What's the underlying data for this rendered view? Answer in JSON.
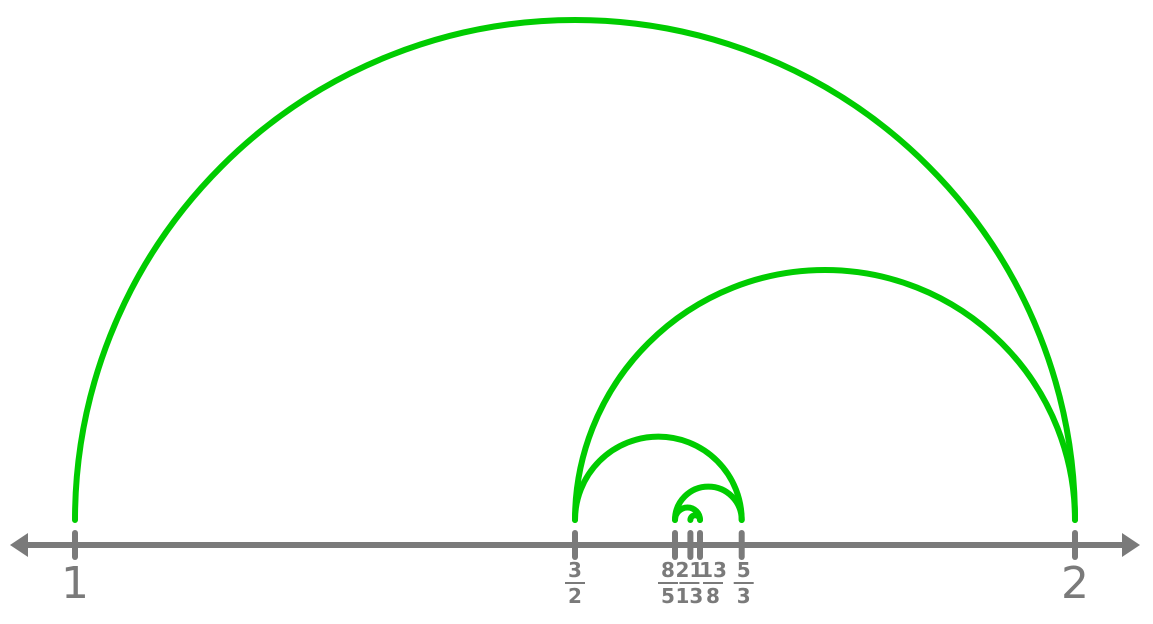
{
  "number_line": {
    "axis": {
      "min": 1,
      "max": 2
    },
    "points": [
      {
        "id": "p1",
        "value": 1,
        "label": "1"
      },
      {
        "id": "p3_2",
        "value": 1.5,
        "numerator": "3",
        "denominator": "2"
      },
      {
        "id": "p8_5",
        "value": 1.6,
        "numerator": "8",
        "denominator": "5"
      },
      {
        "id": "p21_13",
        "value": 1.6154,
        "numerator": "21",
        "denominator": "13"
      },
      {
        "id": "p13_8",
        "value": 1.625,
        "numerator": "13",
        "denominator": "8"
      },
      {
        "id": "p5_3",
        "value": 1.6667,
        "numerator": "5",
        "denominator": "3"
      },
      {
        "id": "p2",
        "value": 2,
        "label": "2"
      }
    ],
    "arcs": [
      {
        "from": 1,
        "to": 2
      },
      {
        "from": 1.5,
        "to": 2
      },
      {
        "from": 1.5,
        "to": 1.6667
      },
      {
        "from": 1.6,
        "to": 1.6667
      },
      {
        "from": 1.6,
        "to": 1.625
      },
      {
        "from": 1.6154,
        "to": 1.625
      }
    ],
    "colors": {
      "arc": "#00cc00",
      "axis": "#7a7a7a"
    }
  }
}
